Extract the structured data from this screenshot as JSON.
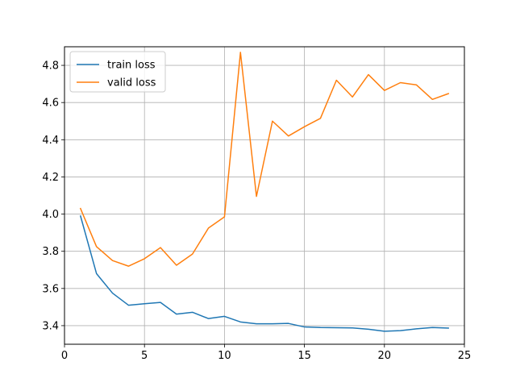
{
  "chart_data": {
    "type": "line",
    "title": "",
    "xlabel": "",
    "ylabel": "",
    "xlim": [
      0,
      25
    ],
    "ylim": [
      3.3,
      4.9
    ],
    "xticks": [
      0,
      5,
      10,
      15,
      20,
      25
    ],
    "yticks": [
      3.4,
      3.6,
      3.8,
      4.0,
      4.2,
      4.4,
      4.6,
      4.8
    ],
    "xtick_labels": [
      "0",
      "5",
      "10",
      "15",
      "20",
      "25"
    ],
    "ytick_labels": [
      "3.4",
      "3.6",
      "3.8",
      "4.0",
      "4.2",
      "4.4",
      "4.6",
      "4.8"
    ],
    "grid": true,
    "legend_position": "top-left",
    "x": [
      1,
      2,
      3,
      4,
      5,
      6,
      7,
      8,
      9,
      10,
      11,
      12,
      13,
      14,
      15,
      16,
      17,
      18,
      19,
      20,
      21,
      22,
      23,
      24
    ],
    "series": [
      {
        "name": "train loss",
        "color": "#1f77b4",
        "values": [
          3.99,
          3.68,
          3.575,
          3.51,
          3.518,
          3.525,
          3.462,
          3.472,
          3.438,
          3.45,
          3.42,
          3.41,
          3.41,
          3.412,
          3.393,
          3.39,
          3.389,
          3.388,
          3.381,
          3.37,
          3.373,
          3.383,
          3.39,
          3.387
        ]
      },
      {
        "name": "valid loss",
        "color": "#ff7f0e",
        "values": [
          4.03,
          3.825,
          3.75,
          3.72,
          3.76,
          3.82,
          3.725,
          3.785,
          3.925,
          3.985,
          4.87,
          4.095,
          4.5,
          4.42,
          4.47,
          4.515,
          4.72,
          4.63,
          4.75,
          4.665,
          4.707,
          4.695,
          4.617,
          4.648
        ]
      }
    ]
  }
}
